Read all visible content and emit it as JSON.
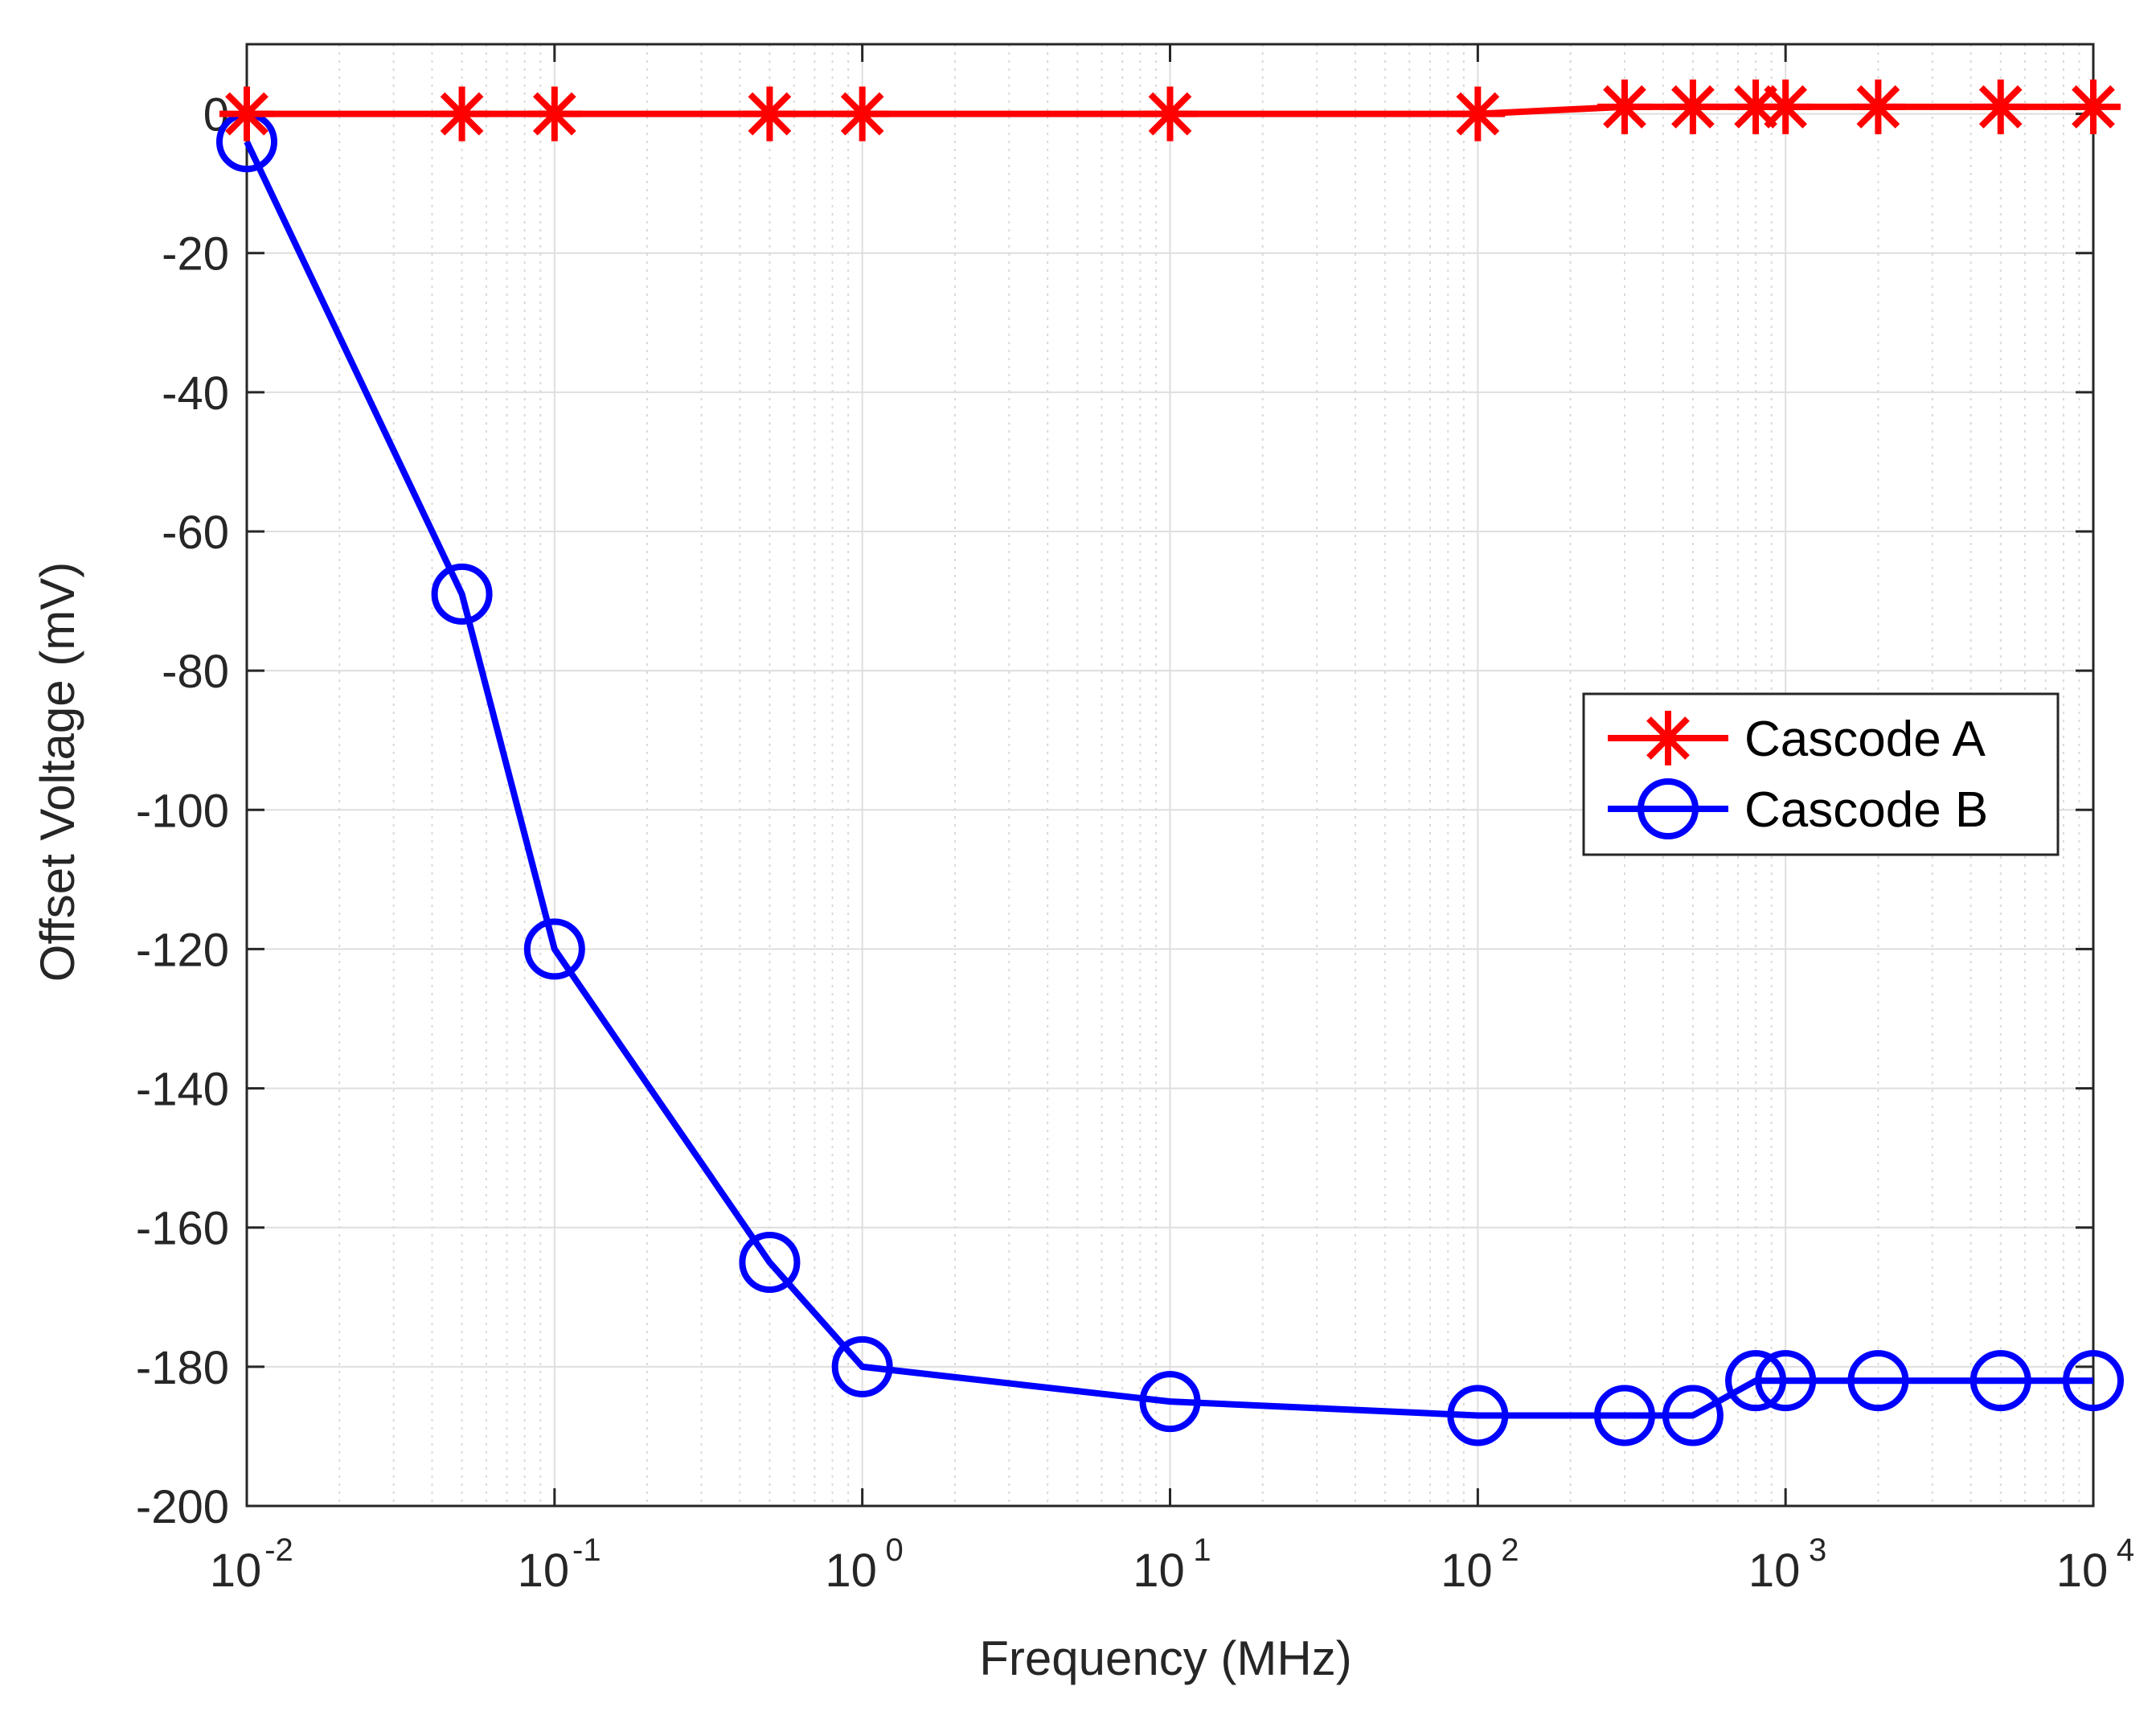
{
  "chart_data": {
    "type": "line",
    "title": "",
    "xlabel": "Frequency (MHz)",
    "ylabel": "Offset Voltage (mV)",
    "xscale": "log",
    "xlim": [
      0.01,
      10000
    ],
    "ylim": [
      -200,
      10
    ],
    "x_ticks": [
      {
        "base": "10",
        "exp": "-2",
        "value": 0.01
      },
      {
        "base": "10",
        "exp": "-1",
        "value": 0.1
      },
      {
        "base": "10",
        "exp": "0",
        "value": 1
      },
      {
        "base": "10",
        "exp": "1",
        "value": 10
      },
      {
        "base": "10",
        "exp": "2",
        "value": 100
      },
      {
        "base": "10",
        "exp": "3",
        "value": 1000
      },
      {
        "base": "10",
        "exp": "4",
        "value": 10000
      }
    ],
    "y_ticks": [
      "0",
      "-20",
      "-40",
      "-60",
      "-80",
      "-100",
      "-120",
      "-140",
      "-160",
      "-180",
      "-200"
    ],
    "grid": true,
    "minor_grid_x": true,
    "legend_position": "right",
    "series": [
      {
        "name": "Cascode A",
        "color": "#ff0000",
        "marker": "asterisk",
        "x": [
          0.01,
          0.05,
          0.1,
          0.5,
          1,
          10,
          100,
          300,
          500,
          800,
          1000,
          2000,
          5000,
          10000
        ],
        "y": [
          0,
          0,
          0,
          0,
          0,
          0,
          0,
          1,
          1,
          1,
          1,
          1,
          1,
          1
        ]
      },
      {
        "name": "Cascode B",
        "color": "#0000ff",
        "marker": "circle",
        "x": [
          0.01,
          0.05,
          0.1,
          0.5,
          1,
          10,
          100,
          300,
          500,
          800,
          1000,
          2000,
          5000,
          10000
        ],
        "y": [
          -4,
          -69,
          -120,
          -165,
          -180,
          -185,
          -187,
          -187,
          -187,
          -182,
          -182,
          -182,
          -182,
          -182
        ]
      }
    ]
  }
}
